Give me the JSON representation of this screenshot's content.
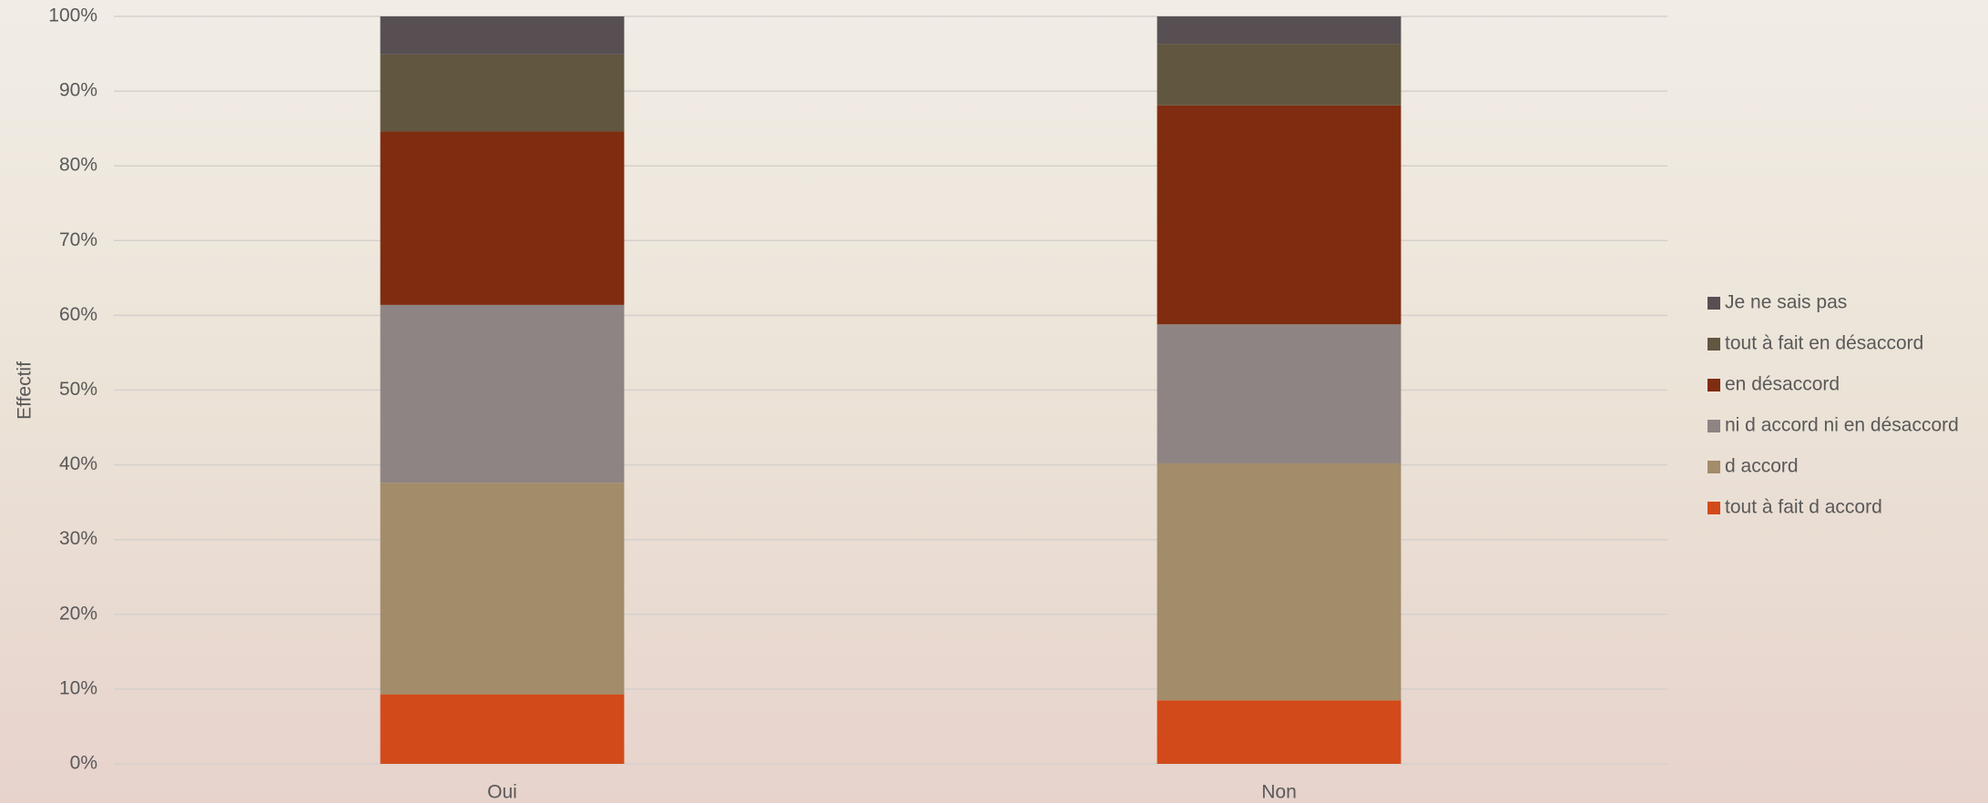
{
  "chart_data": {
    "type": "stacked_bar",
    "y_label": "Effectif",
    "categories": [
      "Oui",
      "Non"
    ],
    "series": [
      {
        "name": "tout à fait d accord",
        "color": "#d24a1a",
        "values": [
          9.3,
          8.5
        ]
      },
      {
        "name": "d accord",
        "color": "#a28c6a",
        "values": [
          28.3,
          31.7
        ]
      },
      {
        "name": "ni d accord ni en désaccord",
        "color": "#8e8483",
        "values": [
          23.8,
          18.6
        ]
      },
      {
        "name": "en désaccord",
        "color": "#7f2c10",
        "values": [
          23.2,
          29.3
        ]
      },
      {
        "name": "tout à fait en désaccord",
        "color": "#61563f",
        "values": [
          10.3,
          8.2
        ]
      },
      {
        "name": "Je ne sais pas",
        "color": "#574f52",
        "values": [
          5.1,
          3.7
        ]
      }
    ],
    "ylim": [
      0,
      100
    ],
    "yticks": [
      {
        "value": 0,
        "label": "0%"
      },
      {
        "value": 10,
        "label": "10%"
      },
      {
        "value": 20,
        "label": "20%"
      },
      {
        "value": 30,
        "label": "30%"
      },
      {
        "value": 40,
        "label": "40%"
      },
      {
        "value": 50,
        "label": "50%"
      },
      {
        "value": 60,
        "label": "60%"
      },
      {
        "value": 70,
        "label": "70%"
      },
      {
        "value": 80,
        "label": "80%"
      },
      {
        "value": 90,
        "label": "90%"
      },
      {
        "value": 100,
        "label": "100%"
      }
    ],
    "grid": true,
    "legend": "right"
  }
}
